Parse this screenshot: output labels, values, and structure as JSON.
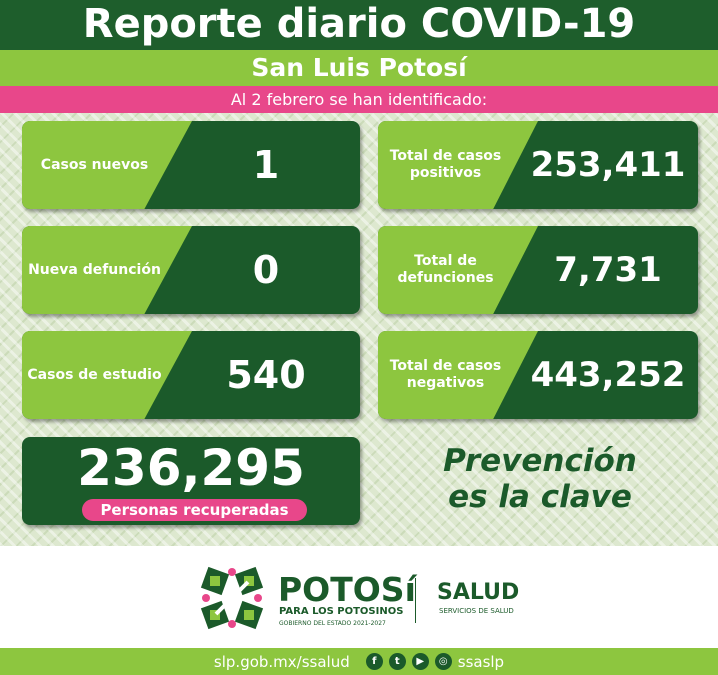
{
  "header": {
    "title": "Reporte diario COVID-19",
    "subtitle": "San Luis Potosí",
    "date_line": "Al 2 febrero se han identificado:"
  },
  "stats": [
    {
      "label": "Casos nuevos",
      "value": "1"
    },
    {
      "label": "Total de casos positivos",
      "value": "253,411"
    },
    {
      "label": "Nueva defunción",
      "value": "0"
    },
    {
      "label": "Total de defunciones",
      "value": "7,731"
    },
    {
      "label": "Casos de estudio",
      "value": "540"
    },
    {
      "label": "Total de casos negativos",
      "value": "443,252"
    }
  ],
  "recovered": {
    "value": "236,295",
    "label": "Personas recuperadas"
  },
  "slogan": {
    "line1": "Prevención",
    "line2": "es la clave"
  },
  "logos": {
    "potosi": "POTOSí",
    "para": "PARA LOS POTOSINOS",
    "gobierno": "GOBIERNO DEL ESTADO 2021-2027",
    "salud": "SALUD",
    "servicios": "SERVICIOS DE SALUD"
  },
  "footer": {
    "url": "slp.gob.mx/ssalud",
    "handle": "ssaslp",
    "icons": [
      "facebook-icon",
      "twitter-icon",
      "youtube-icon",
      "instagram-icon"
    ]
  },
  "colors": {
    "dark_green": "#1b5a2a",
    "lime": "#8dc63f",
    "pink": "#e8478a"
  }
}
